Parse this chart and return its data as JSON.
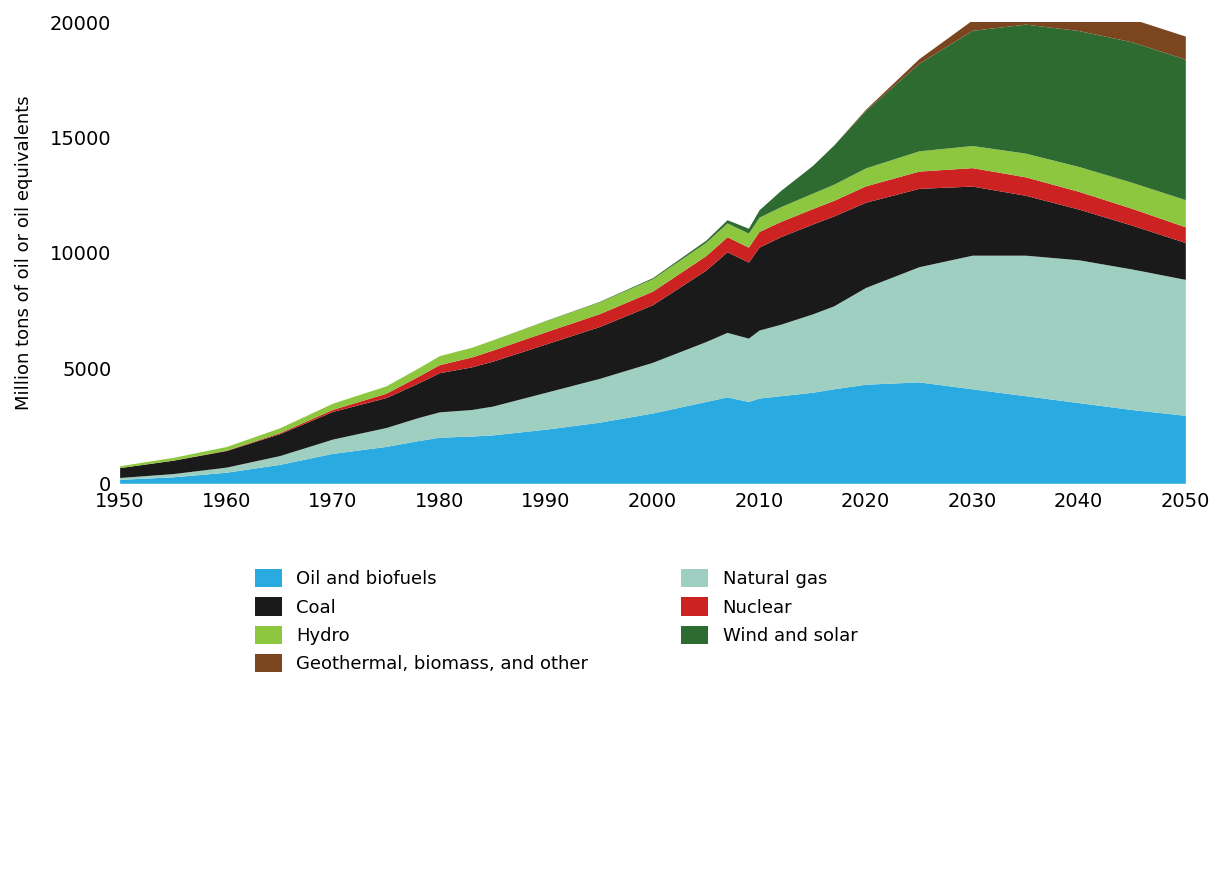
{
  "years": [
    1950,
    1955,
    1960,
    1965,
    1970,
    1975,
    1978,
    1980,
    1983,
    1985,
    1990,
    1995,
    2000,
    2005,
    2007,
    2009,
    2010,
    2012,
    2015,
    2017,
    2020,
    2025,
    2030,
    2035,
    2040,
    2045,
    2050
  ],
  "oil_and_biofuels": [
    170,
    280,
    480,
    820,
    1300,
    1600,
    1850,
    2000,
    2050,
    2100,
    2350,
    2650,
    3050,
    3550,
    3750,
    3550,
    3700,
    3800,
    3950,
    4100,
    4300,
    4400,
    4100,
    3800,
    3500,
    3200,
    2950
  ],
  "natural_gas": [
    80,
    140,
    220,
    380,
    620,
    820,
    1000,
    1100,
    1150,
    1250,
    1600,
    1900,
    2200,
    2600,
    2800,
    2750,
    2950,
    3100,
    3400,
    3600,
    4200,
    5000,
    5800,
    6100,
    6200,
    6100,
    5900
  ],
  "coal": [
    430,
    580,
    720,
    950,
    1200,
    1300,
    1500,
    1700,
    1850,
    1950,
    2100,
    2250,
    2500,
    3100,
    3500,
    3300,
    3600,
    3800,
    3900,
    3900,
    3700,
    3400,
    3000,
    2600,
    2200,
    1900,
    1600
  ],
  "nuclear": [
    0,
    3,
    15,
    45,
    90,
    190,
    290,
    350,
    430,
    480,
    530,
    560,
    590,
    630,
    650,
    650,
    680,
    660,
    670,
    680,
    710,
    750,
    800,
    800,
    770,
    730,
    680
  ],
  "hydro": [
    80,
    120,
    160,
    210,
    270,
    320,
    360,
    390,
    420,
    440,
    480,
    510,
    540,
    580,
    600,
    610,
    620,
    640,
    670,
    700,
    780,
    880,
    960,
    1030,
    1080,
    1130,
    1180
  ],
  "wind_and_solar": [
    0,
    0,
    0,
    0,
    0,
    0,
    0,
    0,
    0,
    5,
    12,
    22,
    45,
    90,
    140,
    210,
    320,
    700,
    1200,
    1700,
    2500,
    3800,
    5000,
    5600,
    5900,
    6100,
    6100
  ],
  "geothermal_biomass_other": [
    0,
    0,
    0,
    0,
    0,
    0,
    0,
    0,
    0,
    0,
    0,
    0,
    0,
    0,
    0,
    0,
    0,
    0,
    0,
    0,
    50,
    200,
    450,
    700,
    900,
    1000,
    1000
  ],
  "colors": {
    "oil_and_biofuels": "#29ABE2",
    "natural_gas": "#9ECFC0",
    "coal": "#1A1A1A",
    "nuclear": "#CC2222",
    "hydro": "#8DC63F",
    "wind_and_solar": "#2E6B30",
    "geothermal_biomass_other": "#7B4520"
  },
  "labels": {
    "oil_and_biofuels": "Oil and biofuels",
    "natural_gas": "Natural gas",
    "coal": "Coal",
    "nuclear": "Nuclear",
    "hydro": "Hydro",
    "wind_and_solar": "Wind and solar",
    "geothermal_biomass_other": "Geothermal, biomass, and other"
  },
  "ylabel": "Million tons of oil or oil equivalents",
  "ylim": [
    0,
    20000
  ],
  "yticks": [
    0,
    5000,
    10000,
    15000,
    20000
  ],
  "xlim": [
    1950,
    2050
  ],
  "xticks": [
    1950,
    1960,
    1970,
    1980,
    1990,
    2000,
    2010,
    2020,
    2030,
    2040,
    2050
  ],
  "background_color": "#FFFFFF",
  "stack_order": [
    "oil_and_biofuels",
    "natural_gas",
    "coal",
    "nuclear",
    "hydro",
    "wind_and_solar",
    "geothermal_biomass_other"
  ],
  "legend_left": [
    "oil_and_biofuels",
    "coal",
    "hydro",
    "geothermal_biomass_other"
  ],
  "legend_right": [
    "natural_gas",
    "nuclear",
    "wind_and_solar"
  ]
}
